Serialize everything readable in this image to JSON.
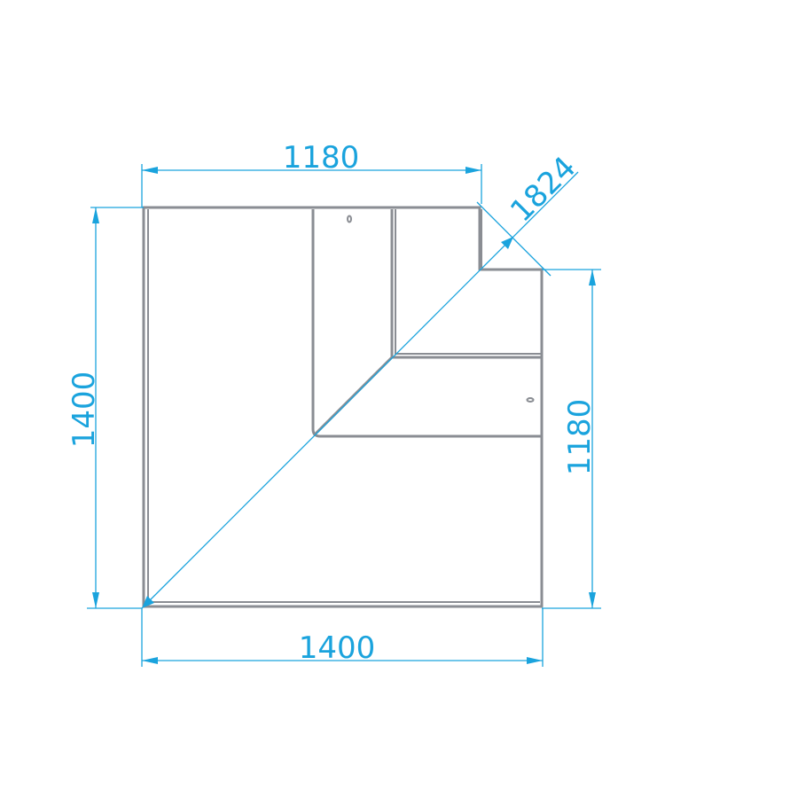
{
  "dimensions": {
    "top_width": "1180",
    "left_height": "1400",
    "right_height": "1180",
    "bottom_width": "1400",
    "diagonal": "1824"
  },
  "colors": {
    "outline": "#8a8d93",
    "dimension": "#1aa3dd"
  }
}
